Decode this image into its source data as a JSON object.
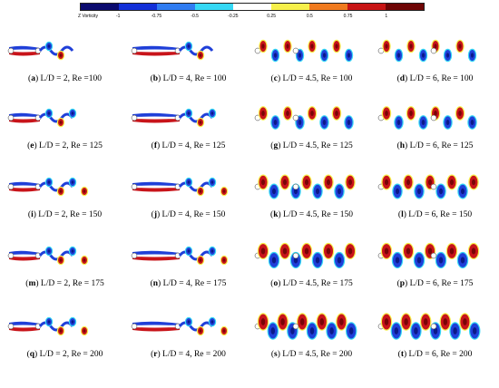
{
  "colorbar": {
    "title": "Z Vorticity",
    "ticks": [
      "-1",
      "-0.75",
      "-0.5",
      "-0.25",
      "0.25",
      "0.5",
      "0.75",
      "1"
    ],
    "colors": [
      "#0a0a6e",
      "#1230d8",
      "#2f7cf2",
      "#35d8f5",
      "#ffffff",
      "#f7f04a",
      "#f07a1e",
      "#c81414",
      "#6e0505"
    ]
  },
  "panels": [
    {
      "letter": "a",
      "text": " L/D = 2, Re =100"
    },
    {
      "letter": "b",
      "text": " L/D = 4, Re = 100"
    },
    {
      "letter": "c",
      "text": " L/D = 4.5, Re = 100"
    },
    {
      "letter": "d",
      "text": " L/D = 6, Re = 100"
    },
    {
      "letter": "e",
      "text": " L/D = 2, Re = 125"
    },
    {
      "letter": "f",
      "text": " L/D = 4, Re = 125"
    },
    {
      "letter": "g",
      "text": " L/D = 4.5, Re = 125"
    },
    {
      "letter": "h",
      "text": " L/D = 6, Re = 125"
    },
    {
      "letter": "i",
      "text": " L/D = 2, Re = 150"
    },
    {
      "letter": "j",
      "text": " L/D = 4, Re = 150"
    },
    {
      "letter": "k",
      "text": " L/D = 4.5, Re = 150"
    },
    {
      "letter": "l",
      "text": " L/D = 6, Re = 150"
    },
    {
      "letter": "m",
      "text": " L/D = 2, Re = 175"
    },
    {
      "letter": "n",
      "text": " L/D = 4, Re = 175"
    },
    {
      "letter": "o",
      "text": " L/D = 4.5, Re = 175"
    },
    {
      "letter": "p",
      "text": " L/D = 6, Re = 175"
    },
    {
      "letter": "q",
      "text": " L/D = 2, Re = 200"
    },
    {
      "letter": "r",
      "text": " L/D = 4, Re = 200"
    },
    {
      "letter": "s",
      "text": " L/D = 4.5, Re = 200"
    },
    {
      "letter": "t",
      "text": " L/D = 6, Re = 200"
    }
  ]
}
